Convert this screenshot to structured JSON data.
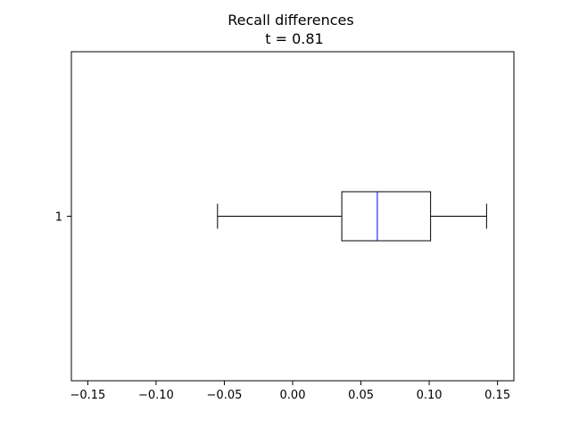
{
  "chart_data": {
    "type": "boxplot",
    "orientation": "horizontal",
    "title": "Recall differences",
    "subtitle": "t = 0.81",
    "xlabel": "",
    "ylabel": "",
    "xlim": [
      -0.162,
      0.162
    ],
    "x_ticks": [
      -0.15,
      -0.1,
      -0.05,
      0.0,
      0.05,
      0.1,
      0.15
    ],
    "x_tick_labels": [
      "−0.15",
      "−0.10",
      "−0.05",
      "0.00",
      "0.05",
      "0.10",
      "0.15"
    ],
    "categories": [
      "1"
    ],
    "boxes": [
      {
        "category": "1",
        "whisker_low": -0.055,
        "q1": 0.036,
        "median": 0.062,
        "q3": 0.101,
        "whisker_high": 0.142
      }
    ],
    "grid": false,
    "colors": {
      "box": "#000000",
      "median": "#0000ff",
      "whisker": "#000000"
    }
  }
}
